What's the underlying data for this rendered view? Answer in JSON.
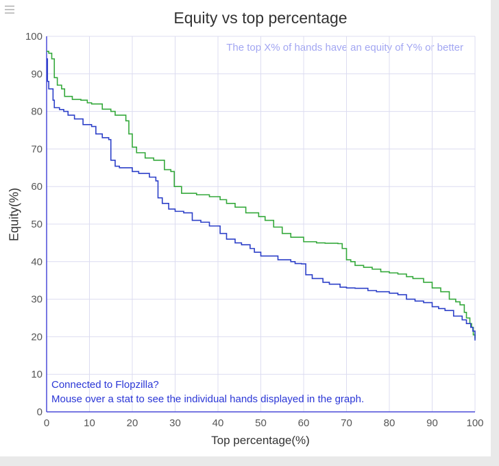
{
  "chart_data": {
    "type": "line",
    "title": "Equity vs top percentage",
    "subtitle": "The top X% of hands have an equity of Y% or better",
    "xlabel": "Top percentage(%)",
    "ylabel": "Equity(%)",
    "xlim": [
      0,
      100
    ],
    "ylim": [
      0,
      100
    ],
    "xticks": [
      0,
      10,
      20,
      30,
      40,
      50,
      60,
      70,
      80,
      90,
      100
    ],
    "yticks": [
      0,
      10,
      20,
      30,
      40,
      50,
      60,
      70,
      80,
      90,
      100
    ],
    "grid": true,
    "series": [
      {
        "name": "green",
        "color": "#33a83a",
        "x": [
          0,
          0.5,
          1.2,
          1.8,
          2.5,
          3.5,
          4.2,
          6,
          8,
          9.5,
          10.5,
          13,
          15,
          16,
          17.5,
          18.5,
          19.2,
          20,
          21,
          23,
          25,
          27.5,
          29,
          29.8,
          31.5,
          35,
          38,
          40.5,
          42,
          44,
          46.5,
          49.5,
          51,
          53,
          55,
          57,
          60,
          63,
          65,
          68,
          69,
          70,
          71,
          72,
          74,
          76,
          78,
          80,
          82,
          84,
          85.5,
          88,
          90,
          92,
          94,
          95.5,
          96.5,
          97.5,
          98,
          98.8,
          99.2,
          99.6,
          100
        ],
        "y": [
          96,
          95.5,
          94,
          89,
          87,
          86,
          84,
          83.2,
          83,
          82.3,
          82,
          80.6,
          80,
          79,
          79,
          77.5,
          74,
          70.5,
          69,
          67.6,
          67,
          64.5,
          64,
          60,
          58.2,
          57.8,
          57.3,
          56.5,
          55.5,
          54.5,
          53,
          52,
          51,
          49.2,
          47.5,
          46.5,
          45.3,
          45,
          44.9,
          44.8,
          43.5,
          40.5,
          40,
          39,
          38.5,
          38,
          37.3,
          37,
          36.7,
          36,
          35.5,
          34.5,
          33,
          32,
          30,
          29.3,
          28.5,
          26.5,
          25,
          23.5,
          22.5,
          20.5,
          19.5
        ]
      },
      {
        "name": "blue",
        "color": "#2b3fc8",
        "x": [
          0,
          0.2,
          0.5,
          1.5,
          1.8,
          3,
          4,
          5,
          6.5,
          8.5,
          10.5,
          11.5,
          13,
          14.5,
          15,
          16,
          17,
          20,
          21.5,
          24,
          25.5,
          26,
          27,
          28.5,
          30,
          32,
          34,
          36,
          38,
          40.5,
          42,
          44,
          45.5,
          47.5,
          48.5,
          50,
          54,
          57,
          58,
          59.5,
          60.5,
          62,
          64.5,
          66,
          68.5,
          70,
          72,
          75,
          77,
          80,
          82,
          84,
          86,
          88,
          90,
          91.5,
          93,
          95,
          97,
          98,
          99,
          99.5,
          100
        ],
        "y": [
          94,
          88,
          86,
          83,
          81,
          80.5,
          80,
          79,
          78,
          76.5,
          76,
          74,
          73,
          72.5,
          67,
          65.4,
          65,
          64,
          63.5,
          62.5,
          61.5,
          57,
          55.5,
          54,
          53.4,
          53,
          51,
          50.5,
          49.5,
          47.5,
          46,
          45,
          44.5,
          43.5,
          42.5,
          41.5,
          40.5,
          40,
          39.5,
          39.4,
          36.5,
          35.5,
          34.5,
          34,
          33.2,
          33,
          32.9,
          32.3,
          32,
          31.6,
          31.2,
          30,
          29.5,
          29.1,
          28,
          27.5,
          27,
          25.5,
          24.5,
          23.5,
          22.5,
          21.5,
          19
        ]
      }
    ]
  },
  "footer": {
    "line1": "Connected to Flopzilla?",
    "line2": "Mouse over a stat to see the individual hands displayed in the graph."
  }
}
